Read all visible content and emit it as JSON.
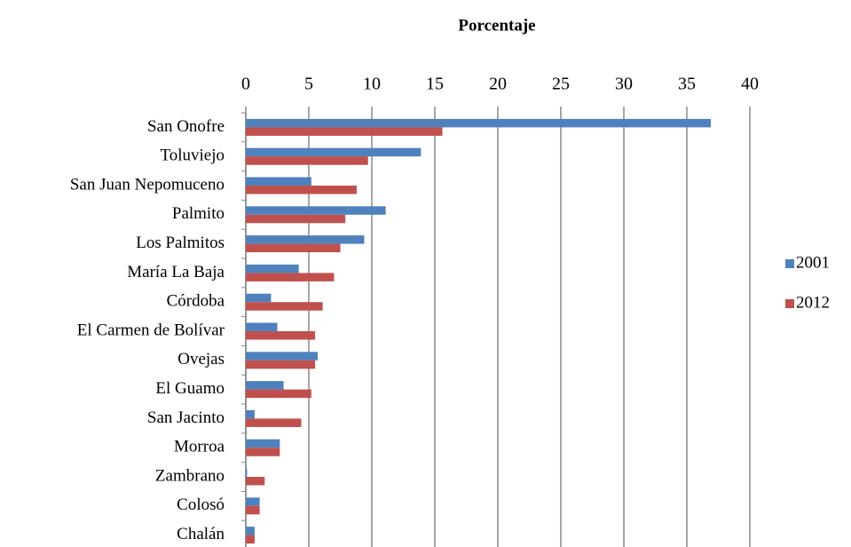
{
  "chart_data": {
    "type": "bar",
    "orientation": "horizontal",
    "title": "Porcentaje",
    "categories": [
      "San Onofre",
      "Toluviejo",
      "San Juan Nepomuceno",
      "Palmito",
      "Los Palmitos",
      "María La Baja",
      "Córdoba",
      "El Carmen de Bolívar",
      "Ovejas",
      "El Guamo",
      "San Jacinto",
      "Morroa",
      "Zambrano",
      "Colosó",
      "Chalán"
    ],
    "series": [
      {
        "name": "2001",
        "color": "#4f81bd",
        "values": [
          36.9,
          13.9,
          5.2,
          11.1,
          9.4,
          4.2,
          2.0,
          2.5,
          5.7,
          3.0,
          0.7,
          2.7,
          0.1,
          1.1,
          0.7
        ]
      },
      {
        "name": "2012",
        "color": "#c0504d",
        "values": [
          15.6,
          9.7,
          8.8,
          7.9,
          7.5,
          7.0,
          6.1,
          5.5,
          5.5,
          5.2,
          4.4,
          2.7,
          1.5,
          1.1,
          0.7
        ]
      }
    ],
    "xlim": [
      0,
      40
    ],
    "xticks": [
      0,
      5,
      10,
      15,
      20,
      25,
      30,
      35,
      40
    ],
    "grid": true,
    "legend": "right"
  }
}
